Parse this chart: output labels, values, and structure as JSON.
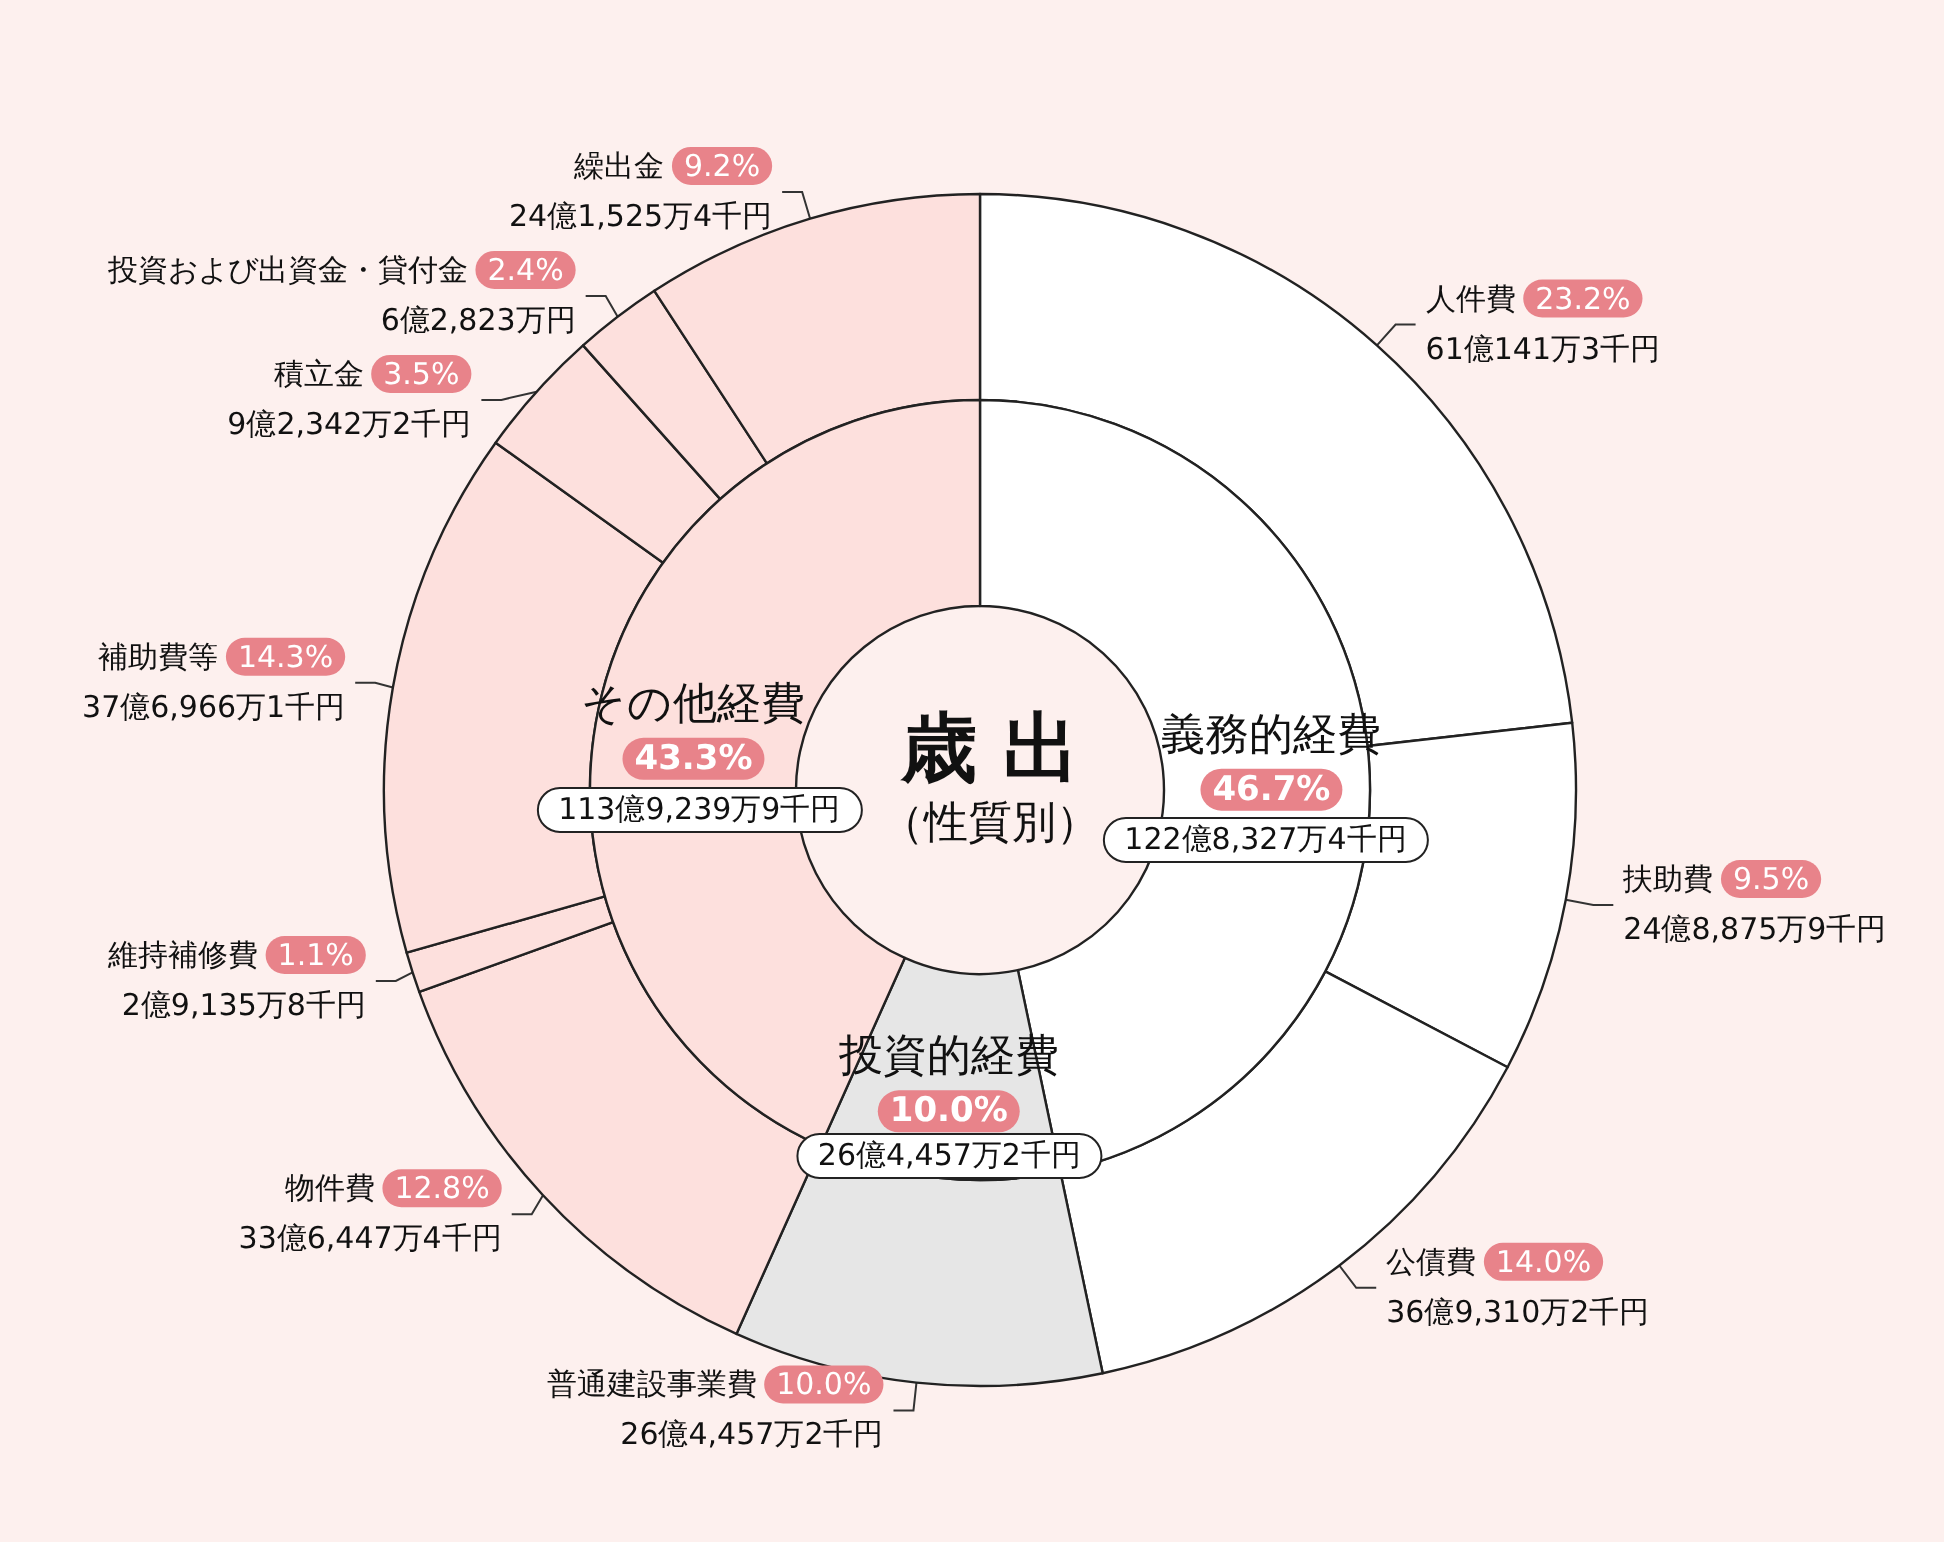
{
  "chart_data": [
    {
      "type": "donut",
      "title": "歳 出",
      "subtitle": "（性質別）",
      "categories": [
        "義務的経費",
        "投資的経費",
        "その他経費"
      ],
      "values": [
        46.7,
        10.0,
        43.3
      ],
      "value_labels": [
        "46.7%",
        "10.0%",
        "43.3%"
      ],
      "colors": [
        "#ffffff",
        "#e6e6e6",
        "#fde0dd"
      ],
      "annotations": [
        "122億8,327万4千円",
        "26億4,457万2千円",
        "113億9,239万9千円"
      ]
    },
    {
      "type": "donut",
      "categories": [
        "人件費",
        "扶助費",
        "公債費",
        "普通建設事業費",
        "物件費",
        "維持補修費",
        "補助費等",
        "積立金",
        "投資および出資金・貸付金",
        "繰出金"
      ],
      "values": [
        23.2,
        9.5,
        14.0,
        10.0,
        12.8,
        1.1,
        14.3,
        3.5,
        2.4,
        9.2
      ],
      "value_labels": [
        "23.2%",
        "9.5%",
        "14.0%",
        "10.0%",
        "12.8%",
        "1.1%",
        "14.3%",
        "3.5%",
        "2.4%",
        "9.2%"
      ],
      "colors": [
        "#ffffff",
        "#ffffff",
        "#ffffff",
        "#e6e6e6",
        "#fde0dd",
        "#fde0dd",
        "#fde0dd",
        "#fde0dd",
        "#fde0dd",
        "#fde0dd"
      ],
      "annotations": [
        "61億141万3千円",
        "24億8,875万9千円",
        "36億9,310万2千円",
        "26億4,457万2千円",
        "33億6,447万4千円",
        "2億9,135万8千円",
        "37億6,966万1千円",
        "9億2,342万2千円",
        "6億2,823万円",
        "24億1,525万4千円"
      ]
    }
  ]
}
